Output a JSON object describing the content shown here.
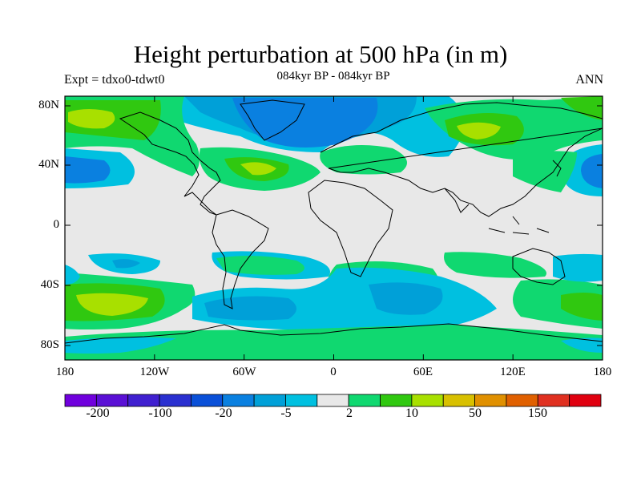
{
  "title": "Height perturbation at 500 hPa (in m)",
  "subtitle": "084kyr BP - 084kyr BP",
  "left_label": "Expt = tdxo0-tdwt0",
  "right_label": "ANN",
  "lat_ticks": [
    "80N",
    "40N",
    "0",
    "40S",
    "80S"
  ],
  "lon_ticks": [
    "180",
    "120W",
    "60W",
    "0",
    "60E",
    "120E",
    "180"
  ],
  "colorbar": {
    "colors": [
      "#7000dd",
      "#5a10d5",
      "#4020d0",
      "#2a30d0",
      "#0a50d8",
      "#0a80e0",
      "#00a0d8",
      "#00c0e0",
      "#e8e8e8",
      "#10d870",
      "#30c810",
      "#a8e000",
      "#d8c000",
      "#e09000",
      "#e06000",
      "#e03020",
      "#e00010"
    ],
    "tick_labels": [
      "-200",
      "-100",
      "-20",
      "-5",
      "2",
      "10",
      "50",
      "150"
    ]
  },
  "colors": {
    "map_background": "#e8e8e8",
    "coastline": "#000000"
  }
}
